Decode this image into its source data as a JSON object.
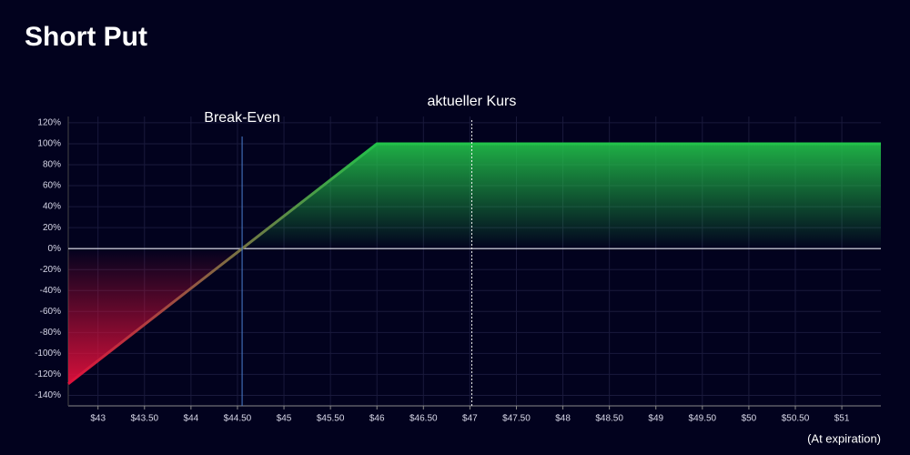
{
  "chart_data": {
    "type": "line",
    "title": "Short Put",
    "footnote": "(At expiration)",
    "x": [
      42.68,
      44.55,
      46,
      51.42
    ],
    "series": [
      {
        "name": "Short Put",
        "values": [
          -129,
          0,
          100,
          100
        ],
        "color": "#22c24a",
        "negative_color": "#e0103c"
      }
    ],
    "xlim": [
      42.68,
      51.42
    ],
    "ylim": [
      -150,
      126
    ],
    "xticks": [
      {
        "value": 43,
        "label": "$43"
      },
      {
        "value": 43.5,
        "label": "$43.50"
      },
      {
        "value": 44,
        "label": "$44"
      },
      {
        "value": 44.5,
        "label": "$44.50"
      },
      {
        "value": 45,
        "label": "$45"
      },
      {
        "value": 45.5,
        "label": "$45.50"
      },
      {
        "value": 46,
        "label": "$46"
      },
      {
        "value": 46.5,
        "label": "$46.50"
      },
      {
        "value": 47,
        "label": "$47"
      },
      {
        "value": 47.5,
        "label": "$47.50"
      },
      {
        "value": 48,
        "label": "$48"
      },
      {
        "value": 48.5,
        "label": "$48.50"
      },
      {
        "value": 49,
        "label": "$49"
      },
      {
        "value": 49.5,
        "label": "$49.50"
      },
      {
        "value": 50,
        "label": "$50"
      },
      {
        "value": 50.5,
        "label": "$50.50"
      },
      {
        "value": 51,
        "label": "$51"
      }
    ],
    "yticks": [
      {
        "value": 120,
        "label": "120%"
      },
      {
        "value": 100,
        "label": "100%"
      },
      {
        "value": 80,
        "label": "80%"
      },
      {
        "value": 60,
        "label": "60%"
      },
      {
        "value": 40,
        "label": "40%"
      },
      {
        "value": 20,
        "label": "20%"
      },
      {
        "value": 0,
        "label": "0%"
      },
      {
        "value": -20,
        "label": "-20%"
      },
      {
        "value": -40,
        "label": "-40%"
      },
      {
        "value": -60,
        "label": "-60%"
      },
      {
        "value": -80,
        "label": "-80%"
      },
      {
        "value": -100,
        "label": "-100%"
      },
      {
        "value": -120,
        "label": "-120%"
      },
      {
        "value": -140,
        "label": "-140%"
      }
    ],
    "grid": true,
    "annotations": [
      {
        "text": "Break-Even",
        "x": 44.55,
        "color": "#4a7fd0",
        "style": "solid"
      },
      {
        "text": "aktueller Kurs",
        "x": 47.02,
        "color": "#ffffff",
        "style": "dotted"
      }
    ]
  }
}
